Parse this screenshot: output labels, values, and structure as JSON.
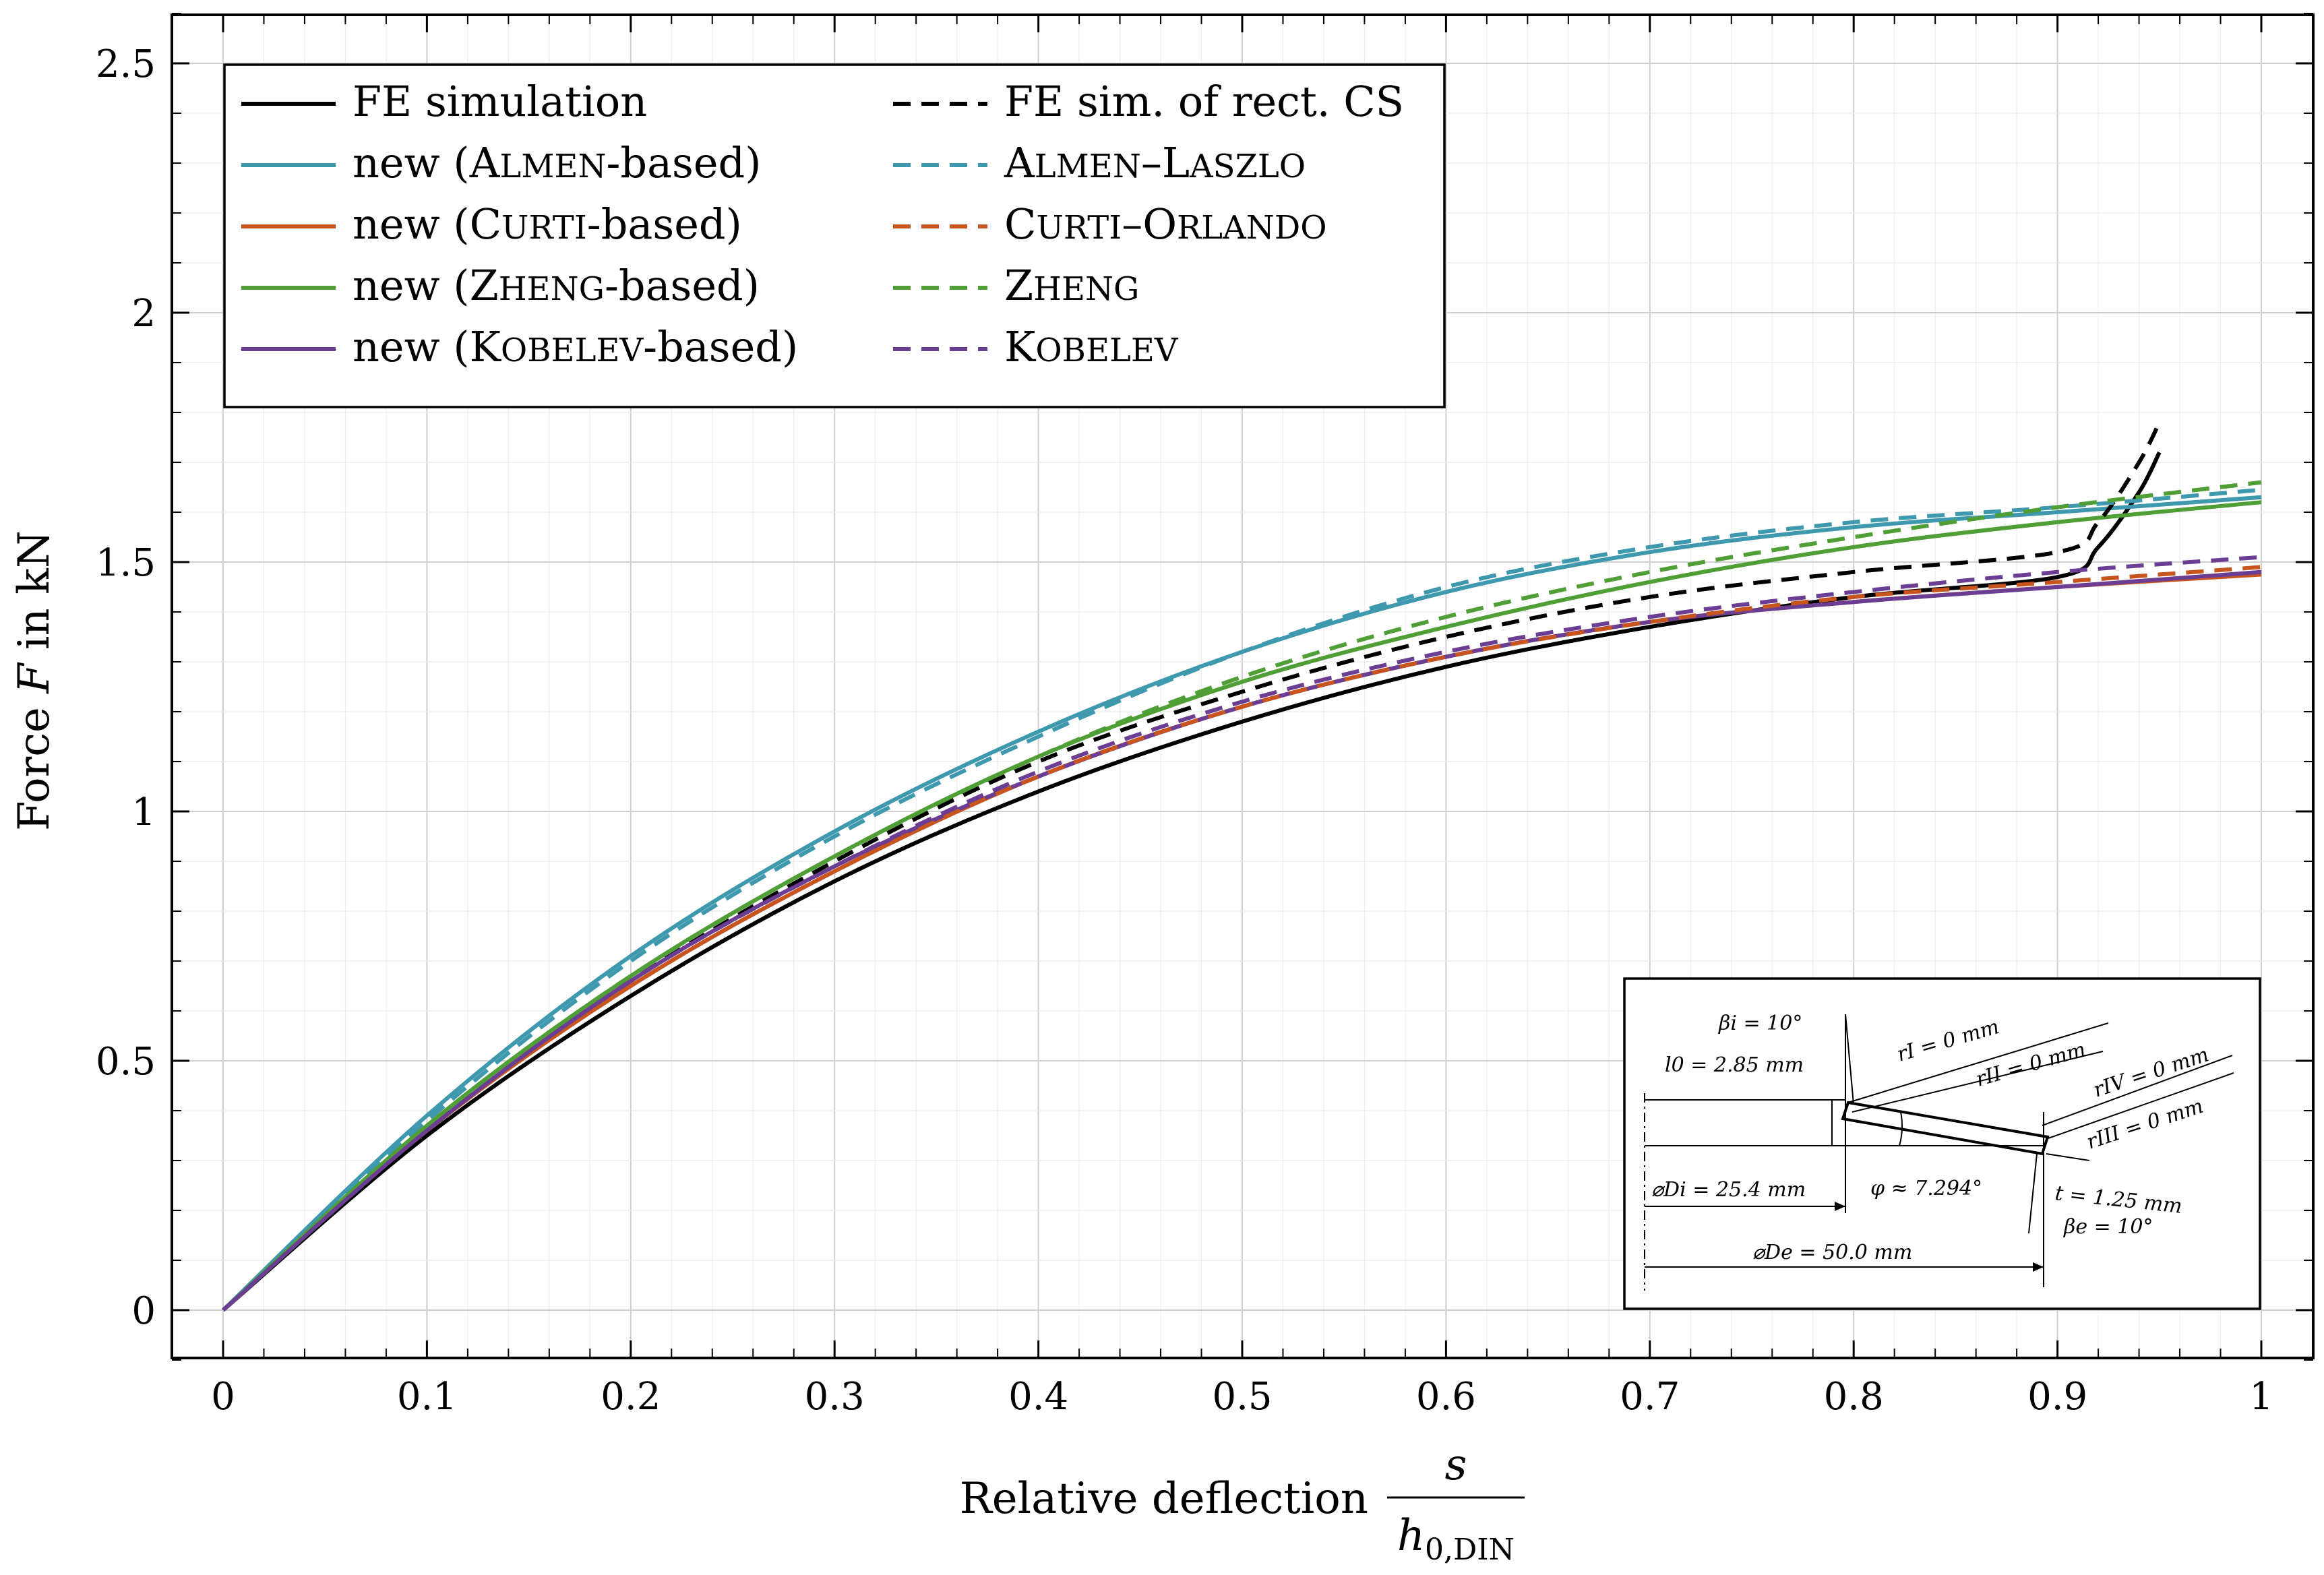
{
  "chart_data": {
    "type": "line",
    "title": "",
    "xlabel": "Relative deflection",
    "xlabel_fraction": {
      "numerator": "s",
      "denominator": "h0,DIN",
      "denominator_base": "h",
      "denominator_sub": "0,DIN"
    },
    "ylabel": "Force F in kN",
    "xlim": [
      0,
      1
    ],
    "ylim": [
      -0.1,
      2.6
    ],
    "xticks": [
      0,
      0.1,
      0.2,
      0.3,
      0.4,
      0.5,
      0.6,
      0.7,
      0.8,
      0.9,
      1
    ],
    "xtick_labels": [
      "0",
      "0.1",
      "0.2",
      "0.3",
      "0.4",
      "0.5",
      "0.6",
      "0.7",
      "0.8",
      "0.9",
      "1"
    ],
    "yticks": [
      0,
      0.5,
      1,
      1.5,
      2,
      2.5
    ],
    "ytick_labels": [
      "0",
      "0.5",
      "1",
      "1.5",
      "2",
      "2.5"
    ],
    "grid": true,
    "legend_position": "top-left",
    "x": [
      0,
      0.1,
      0.2,
      0.3,
      0.4,
      0.5,
      0.6,
      0.7,
      0.8,
      0.9,
      1
    ],
    "series": [
      {
        "name": "FE simulation",
        "color": "#000000",
        "dash": "solid",
        "x": [
          0,
          0.1,
          0.2,
          0.3,
          0.4,
          0.5,
          0.6,
          0.7,
          0.8,
          0.9,
          0.92,
          0.94,
          0.95
        ],
        "values": [
          0,
          0.35,
          0.63,
          0.86,
          1.04,
          1.18,
          1.29,
          1.37,
          1.43,
          1.47,
          1.53,
          1.64,
          1.72
        ]
      },
      {
        "name": "new (Almen-based)",
        "label_main": "new (",
        "label_cap": "A",
        "label_small": "LMEN",
        "label_tail": "-based)",
        "color": "#3E98AE",
        "dash": "solid",
        "values": [
          0,
          0.39,
          0.71,
          0.96,
          1.16,
          1.32,
          1.44,
          1.52,
          1.57,
          1.6,
          1.63
        ]
      },
      {
        "name": "new (Curti-based)",
        "label_main": "new (",
        "label_cap": "C",
        "label_small": "URTI",
        "label_tail": "-based)",
        "color": "#C8541E",
        "dash": "solid",
        "values": [
          0,
          0.36,
          0.65,
          0.88,
          1.07,
          1.21,
          1.31,
          1.38,
          1.42,
          1.45,
          1.475
        ]
      },
      {
        "name": "new (Zheng-based)",
        "label_main": "new (",
        "label_cap": "Z",
        "label_small": "HENG",
        "label_tail": "-based)",
        "color": "#4F9E36",
        "dash": "solid",
        "values": [
          0,
          0.37,
          0.67,
          0.91,
          1.11,
          1.26,
          1.37,
          1.46,
          1.53,
          1.58,
          1.62
        ]
      },
      {
        "name": "new (Kobelev-based)",
        "label_main": "new (",
        "label_cap": "K",
        "label_small": "OBELEV",
        "label_tail": "-based)",
        "color": "#6B3E93",
        "dash": "solid",
        "values": [
          0,
          0.36,
          0.66,
          0.89,
          1.07,
          1.21,
          1.31,
          1.38,
          1.42,
          1.45,
          1.48
        ]
      },
      {
        "name": "FE sim. of rect. CS",
        "color": "#000000",
        "dash": "dashed",
        "x": [
          0,
          0.1,
          0.2,
          0.3,
          0.4,
          0.5,
          0.6,
          0.7,
          0.8,
          0.9,
          0.92,
          0.94,
          0.95
        ],
        "values": [
          0,
          0.36,
          0.66,
          0.9,
          1.1,
          1.24,
          1.35,
          1.43,
          1.48,
          1.52,
          1.58,
          1.7,
          1.78
        ]
      },
      {
        "name": "Almen–Laszlo",
        "label_cap": "A",
        "label_small": "LMEN",
        "label_dash": "–",
        "label_cap2": "L",
        "label_small2": "ASZLO",
        "color": "#3E98AE",
        "dash": "dashed",
        "values": [
          0,
          0.38,
          0.7,
          0.95,
          1.15,
          1.32,
          1.45,
          1.53,
          1.58,
          1.61,
          1.645
        ]
      },
      {
        "name": "Curti–Orlando",
        "label_cap": "C",
        "label_small": "URTI",
        "label_dash": "–",
        "label_cap2": "O",
        "label_small2": "RLANDO",
        "color": "#C8541E",
        "dash": "dashed",
        "values": [
          0,
          0.36,
          0.65,
          0.88,
          1.07,
          1.21,
          1.31,
          1.38,
          1.43,
          1.46,
          1.49
        ]
      },
      {
        "name": "Zheng",
        "label_cap": "Z",
        "label_small": "HENG",
        "color": "#4F9E36",
        "dash": "dashed",
        "values": [
          0,
          0.37,
          0.67,
          0.91,
          1.11,
          1.27,
          1.39,
          1.48,
          1.55,
          1.61,
          1.66
        ]
      },
      {
        "name": "Kobelev",
        "label_cap": "K",
        "label_small": "OBELEV",
        "color": "#6B3E93",
        "dash": "dashed",
        "values": [
          0,
          0.36,
          0.66,
          0.89,
          1.08,
          1.22,
          1.32,
          1.39,
          1.44,
          1.48,
          1.51
        ]
      }
    ],
    "inset": {
      "description": "Disc spring cross-section geometry",
      "labels": {
        "beta_i": "βi = 10°",
        "l0": "l0 = 2.85 mm",
        "rI": "rI = 0 mm",
        "rII": "rII = 0 mm",
        "rIV": "rIV = 0 mm",
        "rIII": "rIII = 0 mm",
        "Di": "⌀Di = 25.4 mm",
        "phi": "φ ≈ 7.294°",
        "t": "t = 1.25 mm",
        "beta_e": "βe = 10°",
        "De": "⌀De = 50.0 mm"
      }
    }
  }
}
